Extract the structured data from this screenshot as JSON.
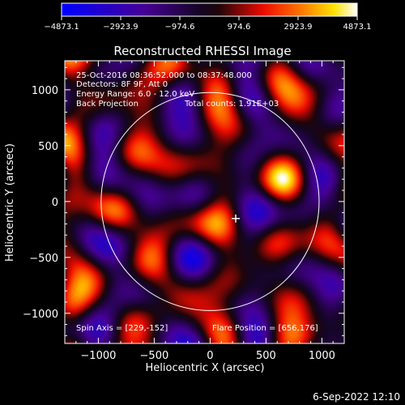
{
  "chart_data": {
    "type": "heatmap",
    "title": "Reconstructed RHESSI Image",
    "xlabel": "Heliocentric X (arcsec)",
    "ylabel": "Heliocentric Y (arcsec)",
    "xlim": [
      -1300,
      1200
    ],
    "ylim": [
      -1270,
      1260
    ],
    "x_ticks": [
      -1000,
      -500,
      0,
      500,
      1000
    ],
    "x_tick_labels": [
      "−1000",
      "−500",
      "0",
      "500",
      "1000"
    ],
    "y_ticks": [
      -1000,
      -500,
      0,
      500,
      1000
    ],
    "y_tick_labels": [
      "−1000",
      "−500",
      "0",
      "500",
      "1000"
    ],
    "colorbar": {
      "min": -4873.1,
      "max": 4873.1,
      "ticks": [
        -4873.1,
        -2923.9,
        -974.6,
        974.6,
        2923.9,
        4873.1
      ],
      "tick_labels": [
        "−4873.1",
        "−2923.9",
        "−974.6",
        "974.6",
        "2923.9",
        "4873.1"
      ]
    },
    "annotations": [
      "25-Oct-2016 08:36:52.000 to 08:37:48.000",
      "Detectors: 8F 9F, Att 0",
      "Energy Range: 6.0 - 12.0 keV",
      "Back Projection",
      "Total counts: 1.91E+03",
      "Spin Axis = [229,-152]",
      "Flare Position = [656,176]"
    ],
    "solar_limb": {
      "center": [
        0,
        0
      ],
      "radius_arcsec": 975
    },
    "spin_axis": [
      229,
      -152
    ],
    "flare_position": [
      656,
      176
    ],
    "sources": [
      {
        "label": "peak",
        "x": 656,
        "y": 176,
        "value": 4873.1
      },
      {
        "label": "trough",
        "x": -180,
        "y": -460,
        "value": -4873.1
      }
    ]
  },
  "footer": {
    "timestamp": "6-Sep-2022 12:10"
  }
}
